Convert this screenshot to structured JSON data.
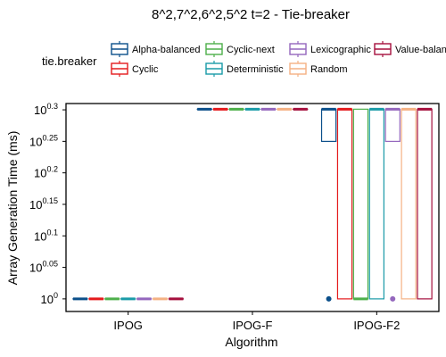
{
  "chart_data": {
    "type": "box",
    "title": "8^2,7^2,6^2,5^2 t=2 - Tie-breaker",
    "xlabel": "Algorithm",
    "ylabel": "Array Generation Time (ms)",
    "y_scale": "log10",
    "ylim_exponent": [
      -0.02,
      0.31
    ],
    "y_ticks": [
      {
        "base": "10",
        "exp": "0"
      },
      {
        "base": "10",
        "exp": "0.05"
      },
      {
        "base": "10",
        "exp": "0.1"
      },
      {
        "base": "10",
        "exp": "0.15"
      },
      {
        "base": "10",
        "exp": "0.2"
      },
      {
        "base": "10",
        "exp": "0.25"
      },
      {
        "base": "10",
        "exp": "0.3"
      }
    ],
    "categories": [
      "IPOG",
      "IPOG-F",
      "IPOG-F2"
    ],
    "grid": false,
    "legend": {
      "title": "tie.breaker",
      "placement": "top",
      "entries": [
        "Alpha-balanced",
        "Cyclic",
        "Cyclic-next",
        "Deterministic",
        "Lexicographic",
        "Random",
        "Value-balanced"
      ],
      "visible_entries": [
        "Alpha-balanced",
        "Cyclic",
        "Cyclic-next",
        "Deterministic",
        "Lexicographic",
        "Random",
        "Value-balan"
      ]
    },
    "series": [
      {
        "name": "Alpha-balanced",
        "color": "#0b4f8a",
        "boxes": [
          {
            "category": "IPOG",
            "min": 1,
            "q1": 1,
            "median": 1,
            "q3": 1,
            "max": 1,
            "outliers": []
          },
          {
            "category": "IPOG-F",
            "min": 2,
            "q1": 2,
            "median": 2,
            "q3": 2,
            "max": 2,
            "outliers": []
          },
          {
            "category": "IPOG-F2",
            "min": 1.778,
            "q1": 1.778,
            "median": 2,
            "q3": 2,
            "max": 2,
            "outliers": [
              1
            ]
          }
        ]
      },
      {
        "name": "Cyclic",
        "color": "#e41a1c",
        "boxes": [
          {
            "category": "IPOG",
            "min": 1,
            "q1": 1,
            "median": 1,
            "q3": 1,
            "max": 1,
            "outliers": []
          },
          {
            "category": "IPOG-F",
            "min": 2,
            "q1": 2,
            "median": 2,
            "q3": 2,
            "max": 2,
            "outliers": []
          },
          {
            "category": "IPOG-F2",
            "min": 1,
            "q1": 1,
            "median": 2,
            "q3": 2,
            "max": 2,
            "outliers": []
          }
        ]
      },
      {
        "name": "Cyclic-next",
        "color": "#4daf4a",
        "boxes": [
          {
            "category": "IPOG",
            "min": 1,
            "q1": 1,
            "median": 1,
            "q3": 1,
            "max": 1,
            "outliers": []
          },
          {
            "category": "IPOG-F",
            "min": 2,
            "q1": 2,
            "median": 2,
            "q3": 2,
            "max": 2,
            "outliers": []
          },
          {
            "category": "IPOG-F2",
            "min": 1,
            "q1": 1,
            "median": 1,
            "q3": 2,
            "max": 2,
            "outliers": []
          }
        ]
      },
      {
        "name": "Deterministic",
        "color": "#1a9ba8",
        "boxes": [
          {
            "category": "IPOG",
            "min": 1,
            "q1": 1,
            "median": 1,
            "q3": 1,
            "max": 1,
            "outliers": []
          },
          {
            "category": "IPOG-F",
            "min": 2,
            "q1": 2,
            "median": 2,
            "q3": 2,
            "max": 2,
            "outliers": []
          },
          {
            "category": "IPOG-F2",
            "min": 1,
            "q1": 1,
            "median": 2,
            "q3": 2,
            "max": 2,
            "outliers": []
          }
        ]
      },
      {
        "name": "Lexicographic",
        "color": "#9467bd",
        "boxes": [
          {
            "category": "IPOG",
            "min": 1,
            "q1": 1,
            "median": 1,
            "q3": 1,
            "max": 1,
            "outliers": []
          },
          {
            "category": "IPOG-F",
            "min": 2,
            "q1": 2,
            "median": 2,
            "q3": 2,
            "max": 2,
            "outliers": []
          },
          {
            "category": "IPOG-F2",
            "min": 1.778,
            "q1": 1.778,
            "median": 2,
            "q3": 2,
            "max": 2,
            "outliers": [
              1
            ]
          }
        ]
      },
      {
        "name": "Random",
        "color": "#f4b183",
        "boxes": [
          {
            "category": "IPOG",
            "min": 1,
            "q1": 1,
            "median": 1,
            "q3": 1,
            "max": 1,
            "outliers": []
          },
          {
            "category": "IPOG-F",
            "min": 2,
            "q1": 2,
            "median": 2,
            "q3": 2,
            "max": 2,
            "outliers": []
          },
          {
            "category": "IPOG-F2",
            "min": 1,
            "q1": 1,
            "median": 2,
            "q3": 2,
            "max": 2,
            "outliers": []
          }
        ]
      },
      {
        "name": "Value-balanced",
        "color": "#a50f3d",
        "boxes": [
          {
            "category": "IPOG",
            "min": 1,
            "q1": 1,
            "median": 1,
            "q3": 1,
            "max": 1,
            "outliers": []
          },
          {
            "category": "IPOG-F",
            "min": 2,
            "q1": 2,
            "median": 2,
            "q3": 2,
            "max": 2,
            "outliers": []
          },
          {
            "category": "IPOG-F2",
            "min": 1,
            "q1": 1,
            "median": 2,
            "q3": 2,
            "max": 2,
            "outliers": []
          }
        ]
      }
    ]
  }
}
